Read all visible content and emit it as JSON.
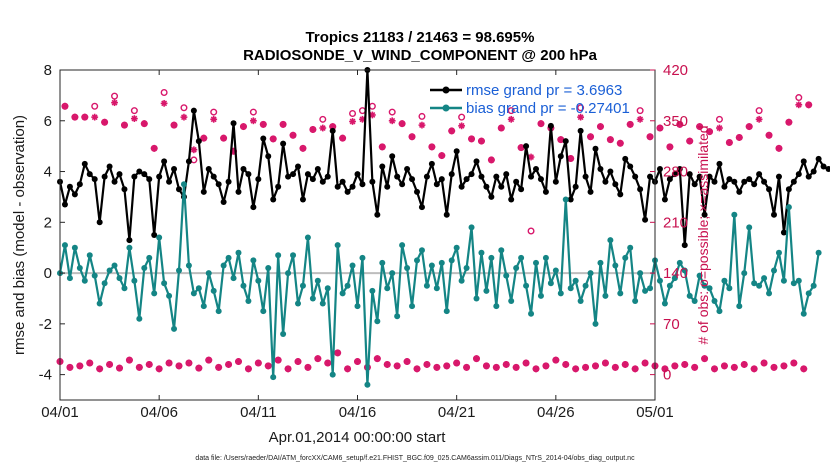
{
  "chart_data": {
    "type": "line",
    "title_line1": "Tropics 21183 / 21463 = 98.695%",
    "title_line2": "RADIOSONDE_V_WIND_COMPONENT @ 200 hPa",
    "xlabel": "Apr.01,2014 00:00:00 start",
    "ylabel_left": "rmse and bias (model - observation)",
    "ylabel_right": "# of obs: o=possible; ×=assimilated",
    "xlim": [
      0,
      30
    ],
    "ylim_left": [
      -5,
      8
    ],
    "ylim_right": [
      -35,
      420
    ],
    "x_tick_positions": [
      0,
      5,
      10,
      15,
      20,
      25,
      30
    ],
    "x_tick_labels": [
      "04/01",
      "04/06",
      "04/11",
      "04/16",
      "04/21",
      "04/26",
      "05/01"
    ],
    "y_left_ticks": [
      -4,
      -2,
      0,
      2,
      4,
      6,
      8
    ],
    "y_left_tick_labels": [
      "-4",
      "-2",
      "0",
      "2",
      "4",
      "6",
      "8"
    ],
    "y_right_ticks": [
      0,
      70,
      140,
      210,
      280,
      350,
      420
    ],
    "y_right_tick_labels": [
      "0",
      "70",
      "140",
      "210",
      "280",
      "350",
      "420"
    ],
    "zero_line": 0,
    "x_step": 0.25,
    "series": [
      {
        "name": "rmse",
        "legend_label": "rmse grand pr = 3.6963",
        "color": "#000000",
        "axis": "left",
        "values": [
          3.6,
          2.7,
          3.4,
          3.1,
          3.5,
          4.3,
          3.9,
          3.7,
          2.0,
          3.8,
          4.2,
          3.6,
          3.9,
          3.3,
          1.3,
          3.8,
          4.0,
          3.9,
          3.7,
          1.5,
          3.8,
          4.4,
          3.6,
          4.1,
          3.3,
          3.0,
          4.4,
          6.4,
          5.2,
          3.2,
          4.1,
          3.8,
          3.5,
          2.8,
          3.6,
          5.9,
          3.2,
          4.1,
          3.9,
          2.6,
          3.7,
          5.3,
          4.6,
          2.9,
          3.4,
          5.1,
          3.8,
          3.9,
          4.2,
          2.9,
          3.9,
          3.7,
          4.1,
          3.6,
          3.8,
          5.6,
          3.4,
          3.6,
          3.2,
          3.4,
          3.9,
          3.5,
          8.0,
          3.6,
          2.3,
          4.2,
          3.4,
          4.6,
          3.8,
          3.5,
          4.1,
          3.7,
          3.2,
          2.6,
          3.8,
          4.3,
          3.5,
          3.7,
          2.3,
          3.9,
          4.8,
          3.4,
          3.7,
          3.9,
          4.4,
          3.8,
          3.4,
          3.0,
          3.8,
          3.4,
          3.9,
          2.9,
          3.6,
          3.3,
          5.0,
          3.8,
          4.1,
          3.7,
          3.2,
          5.8,
          3.6,
          4.6,
          5.2,
          2.9,
          3.4,
          5.6,
          3.8,
          3.2,
          4.9,
          4.1,
          3.6,
          4.0,
          3.5,
          3.1,
          4.5,
          4.2,
          3.8,
          3.3,
          2.1,
          3.8,
          3.6,
          4.1,
          2.9,
          3.7,
          3.9,
          4.1,
          1.1,
          3.9,
          3.5,
          3.8,
          2.3,
          3.8,
          3.6,
          4.3,
          3.4,
          3.7,
          3.6,
          3.2,
          3.6,
          3.7,
          3.5,
          3.9,
          3.6,
          3.3,
          2.3,
          3.8,
          1.6,
          3.3,
          3.6,
          3.9,
          4.4,
          3.8,
          4.0,
          4.5,
          4.2,
          4.1
        ]
      },
      {
        "name": "bias",
        "legend_label": "bias grand pr = -0.27401",
        "color": "#148585",
        "axis": "left",
        "values": [
          0.0,
          1.1,
          -0.2,
          1.0,
          0.2,
          -0.3,
          0.7,
          -0.1,
          -1.2,
          -0.4,
          0.1,
          0.3,
          -0.2,
          -0.6,
          1.0,
          -0.3,
          -1.8,
          0.2,
          0.6,
          -0.8,
          1.4,
          -0.4,
          -0.9,
          -2.2,
          0.1,
          3.5,
          0.3,
          -0.8,
          -0.6,
          -1.3,
          0.0,
          -0.7,
          -1.5,
          0.3,
          0.6,
          -0.2,
          0.8,
          -0.5,
          -1.1,
          0.5,
          -0.3,
          -1.5,
          0.2,
          -4.1,
          0.7,
          -2.4,
          0.0,
          0.7,
          -1.2,
          -0.5,
          1.4,
          -1.0,
          -0.3,
          -1.2,
          -0.6,
          -4.0,
          1.1,
          -0.8,
          -0.5,
          0.3,
          -1.3,
          0.6,
          -4.4,
          -0.7,
          -1.9,
          0.4,
          -0.6,
          0.0,
          -1.7,
          1.1,
          0.2,
          -1.3,
          0.5,
          0.9,
          -0.5,
          0.3,
          -0.6,
          0.4,
          -1.5,
          0.5,
          1.0,
          -0.3,
          0.2,
          1.8,
          -1.0,
          0.8,
          -0.7,
          0.6,
          -1.3,
          0.9,
          -0.1,
          -1.1,
          0.2,
          0.6,
          -0.5,
          -1.6,
          0.4,
          -0.9,
          0.6,
          -0.4,
          0.1,
          -0.8,
          2.9,
          -0.6,
          -0.3,
          -1.1,
          -0.5,
          0.0,
          -2.0,
          0.4,
          -0.9,
          1.3,
          0.3,
          -0.8,
          0.6,
          1.0,
          -1.1,
          0.0,
          -0.7,
          -0.6,
          0.5,
          -0.3,
          -1.2,
          -0.5,
          -0.2,
          0.4,
          0.1,
          -0.9,
          -1.1,
          -0.1,
          -0.5,
          -0.6,
          -1.1,
          -1.5,
          -0.3,
          -0.6,
          2.3,
          -1.3,
          0.0,
          1.8,
          -0.4,
          -0.5,
          -0.2,
          -0.8,
          0.1,
          0.8,
          -0.3,
          2.6,
          -0.4,
          -0.3,
          -1.6,
          -0.8,
          -0.5,
          0.8
        ]
      },
      {
        "name": "obs_possible",
        "legend_label": "o=possible",
        "color": "#d8176b",
        "axis": "right",
        "marker": "circle",
        "values": [
          18,
          370,
          10,
          355,
          12,
          355,
          16,
          370,
          8,
          348,
          14,
          384,
          9,
          344,
          20,
          364,
          10,
          346,
          14,
          312,
          8,
          389,
          16,
          344,
          12,
          368,
          16,
          296,
          9,
          326,
          20,
          362,
          10,
          326,
          14,
          308,
          18,
          342,
          8,
          362,
          16,
          345,
          12,
          325,
          20,
          345,
          8,
          330,
          18,
          312,
          10,
          338,
          22,
          352,
          16,
          342,
          30,
          326,
          8,
          360,
          18,
          364,
          10,
          370,
          22,
          314,
          14,
          362,
          12,
          346,
          18,
          328,
          8,
          356,
          14,
          314,
          10,
          302,
          12,
          336,
          16,
          355,
          10,
          325,
          22,
          322,
          12,
          296,
          10,
          340,
          14,
          364,
          10,
          313,
          16,
          198,
          8,
          346,
          12,
          340,
          20,
          324,
          14,
          298,
          8,
          368,
          10,
          328,
          12,
          342,
          16,
          324,
          10,
          319,
          14,
          345,
          8,
          364,
          16,
          328,
          12,
          340,
          8,
          314,
          12,
          345,
          14,
          322,
          10,
          342,
          22,
          335,
          8,
          352,
          12,
          320,
          10,
          327,
          14,
          342,
          8,
          364,
          16,
          330,
          10,
          312,
          12,
          348,
          16,
          382,
          8,
          372
        ]
      },
      {
        "name": "obs_assimilated",
        "legend_label": "×=assimilated",
        "color": "#d8176b",
        "axis": "right",
        "marker": "asterisk",
        "values": [
          18,
          370,
          10,
          355,
          12,
          355,
          16,
          355,
          8,
          348,
          14,
          375,
          9,
          344,
          20,
          353,
          10,
          346,
          14,
          312,
          8,
          374,
          16,
          344,
          12,
          355,
          16,
          310,
          9,
          326,
          20,
          352,
          10,
          326,
          14,
          308,
          18,
          342,
          8,
          350,
          16,
          345,
          12,
          325,
          20,
          345,
          8,
          330,
          18,
          312,
          10,
          338,
          22,
          340,
          16,
          342,
          30,
          326,
          8,
          349,
          18,
          352,
          10,
          358,
          22,
          314,
          14,
          350,
          12,
          346,
          18,
          328,
          8,
          344,
          14,
          314,
          10,
          302,
          12,
          336,
          16,
          343,
          10,
          325,
          22,
          322,
          12,
          296,
          10,
          340,
          14,
          352,
          10,
          313,
          16,
          300,
          8,
          346,
          12,
          340,
          20,
          324,
          14,
          298,
          8,
          355,
          10,
          328,
          12,
          342,
          16,
          324,
          10,
          319,
          14,
          345,
          8,
          352,
          16,
          328,
          12,
          340,
          8,
          314,
          12,
          345,
          14,
          322,
          10,
          342,
          22,
          335,
          8,
          340,
          12,
          320,
          10,
          327,
          14,
          342,
          8,
          352,
          16,
          330,
          10,
          312,
          12,
          348,
          16,
          372,
          8,
          372
        ]
      }
    ]
  },
  "footer_text": "data file: /Users/raeder/DAI/ATM_forcXX/CAM6_setup/f.e21.FHIST_BGC.f09_025.CAM6assim.011/Diags_NTrS_2014-04/obs_diag_output.nc",
  "colors": {
    "left_axis": "#1a1a1a",
    "right_axis": "#c8104f",
    "legend_text": "#1a5fd6",
    "zero_line": "#bdbdbd"
  }
}
